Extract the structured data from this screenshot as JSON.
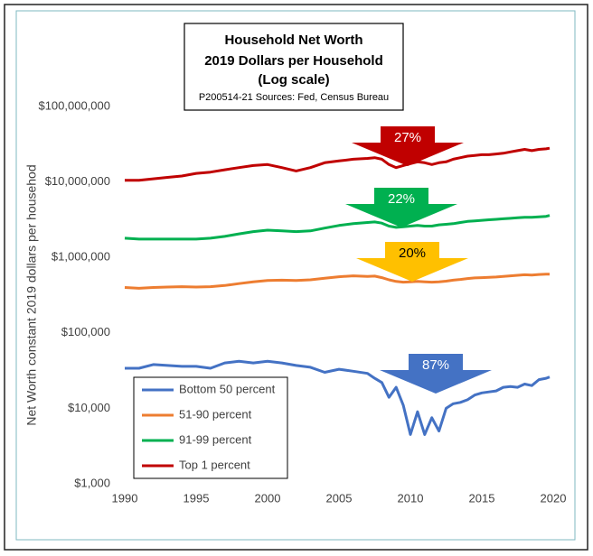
{
  "chart_data": {
    "type": "line",
    "title": [
      "Household Net Worth",
      "2019 Dollars  per Household",
      "(Log scale)"
    ],
    "subtitle": "P200514-21 Sources: Fed, Census Bureau",
    "y_label": "Net Worth constant 2019 dollars per househod",
    "log_scale": true,
    "legend": "bottom-left",
    "x": [
      1990,
      1991,
      1992,
      1993,
      1994,
      1995,
      1996,
      1997,
      1998,
      1999,
      2000,
      2001,
      2002,
      2003,
      2004,
      2005,
      2006,
      2007,
      2007.5,
      2008,
      2008.5,
      2009,
      2009.5,
      2010,
      2010.5,
      2011,
      2011.5,
      2012,
      2012.5,
      2013,
      2013.5,
      2014,
      2014.5,
      2015,
      2015.5,
      2016,
      2016.5,
      2017,
      2017.5,
      2018,
      2018.5,
      2019,
      2019.5,
      2019.75
    ],
    "series": [
      {
        "name": "Bottom 50 percent",
        "color": "#4472c4",
        "values": [
          34000,
          34000,
          38000,
          37000,
          36000,
          36000,
          34000,
          40000,
          42000,
          40000,
          42000,
          40000,
          37000,
          35000,
          30000,
          33000,
          31000,
          29000,
          25000,
          22000,
          14000,
          19000,
          11000,
          4500,
          9000,
          4500,
          7500,
          5000,
          10000,
          11500,
          12000,
          13000,
          15000,
          16000,
          16500,
          17000,
          19000,
          19500,
          19000,
          21000,
          20000,
          24000,
          25000,
          26000
        ]
      },
      {
        "name": "51-90 percent",
        "color": "#ed7d31",
        "values": [
          400000,
          390000,
          400000,
          405000,
          410000,
          405000,
          410000,
          425000,
          450000,
          475000,
          495000,
          500000,
          495000,
          505000,
          530000,
          555000,
          570000,
          560000,
          565000,
          540000,
          505000,
          480000,
          470000,
          475000,
          480000,
          475000,
          470000,
          475000,
          485000,
          500000,
          510000,
          525000,
          535000,
          540000,
          545000,
          550000,
          560000,
          570000,
          580000,
          590000,
          585000,
          595000,
          600000,
          600000
        ]
      },
      {
        "name": "91-99 percent",
        "color": "#00b050",
        "values": [
          1800000,
          1750000,
          1750000,
          1750000,
          1750000,
          1750000,
          1800000,
          1900000,
          2050000,
          2200000,
          2300000,
          2250000,
          2200000,
          2250000,
          2450000,
          2650000,
          2800000,
          2900000,
          2950000,
          2850000,
          2600000,
          2500000,
          2550000,
          2600000,
          2650000,
          2600000,
          2600000,
          2700000,
          2750000,
          2800000,
          2900000,
          3000000,
          3050000,
          3100000,
          3150000,
          3200000,
          3250000,
          3300000,
          3350000,
          3400000,
          3400000,
          3450000,
          3500000,
          3600000
        ]
      },
      {
        "name": "Top 1 percent",
        "color": "#c00000",
        "values": [
          10500000,
          10500000,
          11000000,
          11500000,
          12000000,
          13000000,
          13500000,
          14500000,
          15500000,
          16500000,
          17000000,
          15500000,
          14000000,
          15500000,
          18000000,
          19000000,
          20000000,
          20500000,
          21000000,
          20000000,
          17000000,
          15500000,
          16500000,
          17500000,
          18500000,
          18000000,
          17000000,
          18000000,
          18500000,
          20000000,
          21000000,
          22000000,
          22500000,
          23000000,
          23000000,
          23500000,
          24000000,
          25000000,
          26000000,
          27000000,
          26000000,
          27000000,
          27500000,
          28000000
        ]
      }
    ],
    "xlim": [
      1990,
      2020
    ],
    "xticks": [
      1990,
      1995,
      2000,
      2005,
      2010,
      2015,
      2020
    ],
    "ylim": [
      1000,
      100000000
    ],
    "yticks": [
      {
        "value": 1000,
        "label": "$1,000"
      },
      {
        "value": 10000,
        "label": "$10,000"
      },
      {
        "value": 100000,
        "label": "$100,000"
      },
      {
        "value": 1000000,
        "label": "$1,000,000"
      },
      {
        "value": 10000000,
        "label": "$10,000,000"
      },
      {
        "value": 100000000,
        "label": "$100,000,000"
      }
    ],
    "annotations": [
      {
        "label": "27%",
        "color": "#c00000",
        "text_color": "#ffffff"
      },
      {
        "label": "22%",
        "color": "#00b050",
        "text_color": "#ffffff"
      },
      {
        "label": "20%",
        "color": "#ffc000",
        "text_color": "#000000"
      },
      {
        "label": "87%",
        "color": "#4472c4",
        "text_color": "#ffffff"
      }
    ]
  }
}
